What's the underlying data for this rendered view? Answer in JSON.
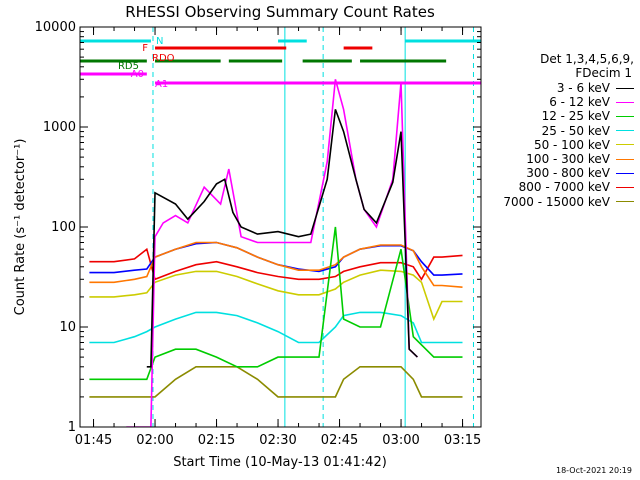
{
  "chart_data": {
    "type": "line",
    "title": "RHESSI Observing Summary Count Rates",
    "xlabel": "Start Time (10-May-13 01:41:42)",
    "ylabel": "Count Rate (s⁻¹ detector⁻¹)",
    "y_scale": "log",
    "ylim": [
      1,
      10000
    ],
    "xlim": [
      "01:41:42",
      "03:19:30"
    ],
    "x_ticks": [
      "01:45",
      "02:00",
      "02:15",
      "02:30",
      "02:45",
      "03:00",
      "03:15"
    ],
    "y_ticks": [
      "1",
      "10",
      "100",
      "1000",
      "10000"
    ],
    "legend_header": [
      "Det 1,3,4,5,6,9,",
      "FDecim 1"
    ],
    "legend_position": "right",
    "footer_date": "18-Oct-2021 20:19",
    "series": [
      {
        "name": "3 - 6 keV",
        "color": "#000000",
        "x": [
          "01:58:00",
          "01:59:00",
          "02:00:00",
          "02:05:00",
          "02:08:00",
          "02:12:00",
          "02:15:00",
          "02:17:00",
          "02:19:00",
          "02:21:00",
          "02:25:00",
          "02:30:00",
          "02:35:00",
          "02:38:00",
          "02:42:00",
          "02:44:00",
          "02:46:00",
          "02:49:00",
          "02:51:00",
          "02:54:00",
          "02:58:00",
          "03:00:00",
          "03:02:00",
          "03:04:00"
        ],
        "y": [
          4,
          4,
          220,
          170,
          120,
          180,
          270,
          300,
          140,
          100,
          85,
          90,
          80,
          85,
          300,
          1500,
          900,
          300,
          150,
          110,
          280,
          900,
          6,
          5
        ]
      },
      {
        "name": "6 - 12 keV",
        "color": "#ff00ff",
        "x": [
          "01:53:00",
          "01:55:00",
          "01:58:00",
          "01:59:00",
          "02:00:00",
          "02:02:00",
          "02:05:00",
          "02:08:00",
          "02:12:00",
          "02:16:00",
          "02:18:00",
          "02:21:00",
          "02:25:00",
          "02:30:00",
          "02:35:00",
          "02:38:00",
          "02:42:00",
          "02:44:00",
          "02:46:00",
          "02:49:00",
          "02:51:00",
          "02:54:00",
          "02:58:00",
          "03:00:00",
          "03:02:00",
          "03:04:00"
        ],
        "y": [
          1,
          1,
          1,
          1,
          80,
          110,
          130,
          110,
          250,
          170,
          380,
          80,
          70,
          70,
          70,
          70,
          450,
          3000,
          1500,
          300,
          150,
          100,
          300,
          2800,
          6,
          5
        ]
      },
      {
        "name": "12 - 25 keV",
        "color": "#00cc00",
        "x": [
          "01:44:00",
          "01:50:00",
          "01:58:00",
          "02:00:00",
          "02:05:00",
          "02:10:00",
          "02:15:00",
          "02:20:00",
          "02:25:00",
          "02:30:00",
          "02:35:00",
          "02:40:00",
          "02:44:00",
          "02:46:00",
          "02:50:00",
          "02:55:00",
          "03:00:00",
          "03:03:00",
          "03:08:00",
          "03:15:00"
        ],
        "y": [
          3,
          3,
          3,
          5,
          6,
          6,
          5,
          4,
          4,
          5,
          5,
          5,
          100,
          12,
          10,
          10,
          60,
          8,
          5,
          5
        ]
      },
      {
        "name": "25 - 50 keV",
        "color": "#00e0e0",
        "x": [
          "01:44:00",
          "01:50:00",
          "01:55:00",
          "01:58:00",
          "02:00:00",
          "02:05:00",
          "02:10:00",
          "02:15:00",
          "02:20:00",
          "02:25:00",
          "02:30:00",
          "02:35:00",
          "02:40:00",
          "02:44:00",
          "02:46:00",
          "02:50:00",
          "02:55:00",
          "03:00:00",
          "03:03:00",
          "03:05:00",
          "03:10:00",
          "03:15:00"
        ],
        "y": [
          7,
          7,
          8,
          9,
          10,
          12,
          14,
          14,
          13,
          11,
          9,
          7,
          7,
          10,
          13,
          14,
          14,
          13,
          11,
          7,
          7,
          7
        ]
      },
      {
        "name": "50 - 100 keV",
        "color": "#cccc00",
        "x": [
          "01:44:00",
          "01:50:00",
          "01:55:00",
          "01:58:00",
          "02:00:00",
          "02:05:00",
          "02:10:00",
          "02:15:00",
          "02:20:00",
          "02:25:00",
          "02:30:00",
          "02:35:00",
          "02:40:00",
          "02:44:00",
          "02:46:00",
          "02:50:00",
          "02:55:00",
          "03:00:00",
          "03:03:00",
          "03:05:00",
          "03:08:00",
          "03:10:00",
          "03:15:00"
        ],
        "y": [
          20,
          20,
          21,
          22,
          28,
          33,
          36,
          36,
          32,
          27,
          23,
          21,
          21,
          24,
          28,
          33,
          37,
          36,
          33,
          28,
          12,
          18,
          18
        ]
      },
      {
        "name": "100 - 300 keV",
        "color": "#ff7700",
        "x": [
          "01:44:00",
          "01:50:00",
          "01:55:00",
          "01:58:00",
          "02:00:00",
          "02:05:00",
          "02:10:00",
          "02:15:00",
          "02:20:00",
          "02:25:00",
          "02:30:00",
          "02:35:00",
          "02:40:00",
          "02:44:00",
          "02:46:00",
          "02:50:00",
          "02:55:00",
          "03:00:00",
          "03:03:00",
          "03:05:00",
          "03:08:00",
          "03:10:00",
          "03:15:00"
        ],
        "y": [
          28,
          28,
          30,
          32,
          50,
          60,
          70,
          70,
          62,
          50,
          42,
          37,
          37,
          42,
          50,
          60,
          66,
          66,
          58,
          40,
          26,
          26,
          25
        ]
      },
      {
        "name": "300 - 800 keV",
        "color": "#0000ff",
        "x": [
          "01:44:00",
          "01:50:00",
          "01:55:00",
          "01:58:00",
          "02:00:00",
          "02:05:00",
          "02:10:00",
          "02:15:00",
          "02:20:00",
          "02:25:00",
          "02:30:00",
          "02:35:00",
          "02:40:00",
          "02:44:00",
          "02:46:00",
          "02:50:00",
          "02:55:00",
          "03:00:00",
          "03:03:00",
          "03:05:00",
          "03:08:00",
          "03:10:00",
          "03:15:00"
        ],
        "y": [
          35,
          35,
          37,
          38,
          50,
          60,
          68,
          70,
          62,
          50,
          42,
          38,
          36,
          40,
          50,
          60,
          65,
          65,
          58,
          45,
          33,
          33,
          34
        ]
      },
      {
        "name": "800 - 7000 keV",
        "color": "#ee0000",
        "x": [
          "01:44:00",
          "01:50:00",
          "01:55:00",
          "01:58:00",
          "02:00:00",
          "02:05:00",
          "02:10:00",
          "02:15:00",
          "02:20:00",
          "02:25:00",
          "02:30:00",
          "02:35:00",
          "02:40:00",
          "02:44:00",
          "02:46:00",
          "02:50:00",
          "02:55:00",
          "03:00:00",
          "03:03:00",
          "03:05:00",
          "03:08:00",
          "03:10:00",
          "03:15:00"
        ],
        "y": [
          45,
          45,
          48,
          60,
          30,
          36,
          42,
          45,
          40,
          35,
          32,
          30,
          30,
          32,
          36,
          40,
          44,
          44,
          40,
          30,
          50,
          50,
          52
        ]
      },
      {
        "name": "7000 - 15000 keV",
        "color": "#8b8b00",
        "x": [
          "01:44:00",
          "01:50:00",
          "01:55:00",
          "01:58:00",
          "02:00:00",
          "02:05:00",
          "02:10:00",
          "02:15:00",
          "02:20:00",
          "02:25:00",
          "02:30:00",
          "02:35:00",
          "02:40:00",
          "02:44:00",
          "02:46:00",
          "02:50:00",
          "02:55:00",
          "03:00:00",
          "03:03:00",
          "03:05:00",
          "03:10:00",
          "03:15:00"
        ],
        "y": [
          2,
          2,
          2,
          2,
          2,
          3,
          4,
          4,
          4,
          3,
          2,
          2,
          2,
          2,
          3,
          4,
          4,
          4,
          3,
          2,
          2,
          2
        ]
      }
    ],
    "flags": [
      {
        "label": "N",
        "color": "#00e0e0",
        "segments": [
          [
            "01:41:42",
            "01:59:00"
          ],
          [
            "02:30:00",
            "02:37:00"
          ],
          [
            "03:01:00",
            "03:19:30"
          ]
        ]
      },
      {
        "label": "F",
        "color": "#ee0000",
        "segments": [
          [
            "02:00:00",
            "02:32:00"
          ],
          [
            "02:46:00",
            "02:53:00"
          ]
        ]
      },
      {
        "label": "RDO",
        "color": "#ee0000",
        "segments": []
      },
      {
        "label": "RD5",
        "color": "#007700",
        "segments": [
          [
            "01:41:42",
            "01:58:00"
          ],
          [
            "02:00:00",
            "02:16:00"
          ],
          [
            "02:18:00",
            "02:31:00"
          ],
          [
            "02:36:00",
            "02:48:00"
          ],
          [
            "02:50:00",
            "03:11:00"
          ]
        ]
      },
      {
        "label": "A0",
        "color": "#ff00ff",
        "segments": [
          [
            "01:41:42",
            "01:58:00"
          ]
        ]
      },
      {
        "label": "A1",
        "color": "#ff00ff",
        "segments": [
          [
            "02:00:00",
            "03:19:30"
          ]
        ]
      }
    ],
    "vertical_markers": [
      {
        "x": "01:41:42",
        "color": "#00e0e0",
        "style": "solid"
      },
      {
        "x": "01:59:30",
        "color": "#00e0e0",
        "style": "dashed"
      },
      {
        "x": "02:31:40",
        "color": "#00e0e0",
        "style": "solid"
      },
      {
        "x": "02:41:00",
        "color": "#00e0e0",
        "style": "dashed"
      },
      {
        "x": "03:01:00",
        "color": "#00e0e0",
        "style": "solid"
      },
      {
        "x": "03:17:40",
        "color": "#00e0e0",
        "style": "dashed"
      }
    ]
  }
}
